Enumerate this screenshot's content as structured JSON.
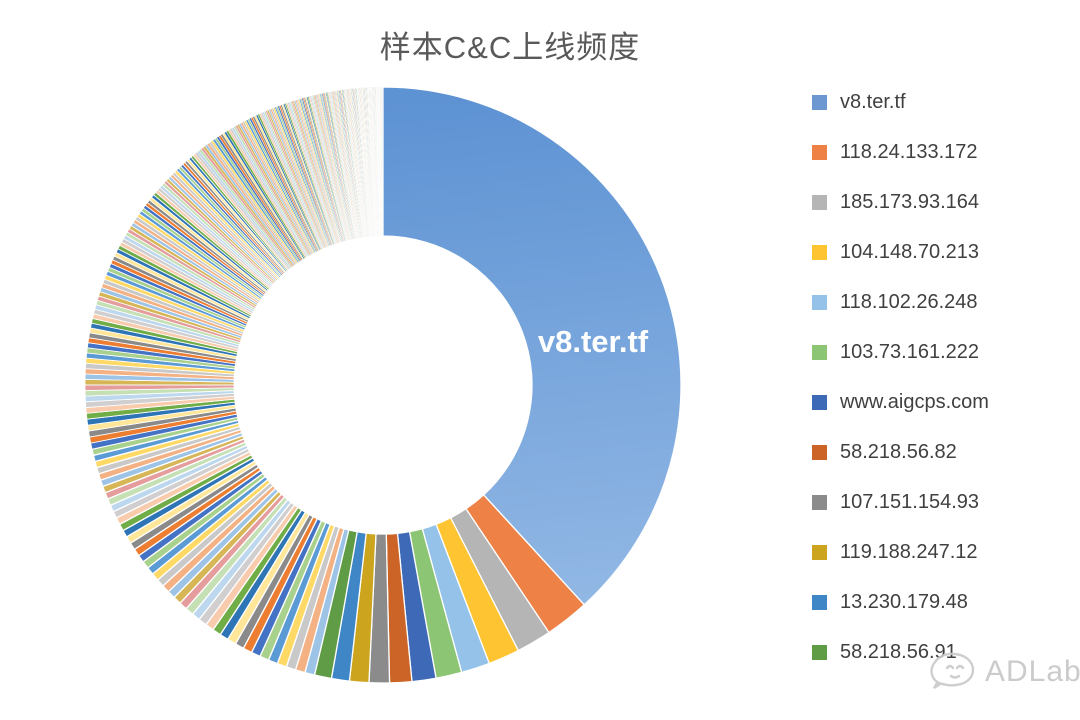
{
  "title": "样本C&C上线频度",
  "chart_data": {
    "type": "doughnut",
    "title": "样本C&C上线频度",
    "unit": "percent-of-total (estimated from arc angles, no numeric labels shown)",
    "hole_ratio": 0.5,
    "legend_position": "right",
    "grid": false,
    "callout_label": "v8.ter.tf",
    "series": [
      {
        "label": "v8.ter.tf",
        "value": 38.2,
        "color": "#6D97D0"
      },
      {
        "label": "118.24.133.172",
        "value": 2.4,
        "color": "#ED8146"
      },
      {
        "label": "185.173.93.164",
        "value": 1.9,
        "color": "#B5B5B5"
      },
      {
        "label": "104.148.70.213",
        "value": 1.7,
        "color": "#FFC431"
      },
      {
        "label": "118.102.26.248",
        "value": 1.55,
        "color": "#94C2E8"
      },
      {
        "label": "103.73.161.222",
        "value": 1.4,
        "color": "#8CC573"
      },
      {
        "label": "www.aigcps.com",
        "value": 1.3,
        "color": "#3D69B6"
      },
      {
        "label": "58.218.56.82",
        "value": 1.2,
        "color": "#CB6426"
      },
      {
        "label": "107.151.154.93",
        "value": 1.1,
        "color": "#8B8B8B"
      },
      {
        "label": "119.188.247.12",
        "value": 1.05,
        "color": "#CCA41E"
      },
      {
        "label": "13.230.179.48",
        "value": 0.97,
        "color": "#3E86C6"
      },
      {
        "label": "58.218.56.91",
        "value": 0.92,
        "color": "#5F9C45"
      }
    ],
    "big_slice_gradient": [
      "#5D92D3",
      "#96BBE6"
    ],
    "unlabeled_tail": {
      "note": "hundreds of additional unlabeled C&C endpoints with steadily decreasing share; slices thin to hairlines and fade toward white approaching 12 o'clock",
      "count": 300,
      "decay_ratio": 0.989,
      "total_value": 46.31,
      "palette": [
        "#9DC3E6",
        "#F4B183",
        "#C9C9C9",
        "#FFD966",
        "#5B9BD5",
        "#A9D18E",
        "#4472C4",
        "#ED7D31",
        "#8A8A8A",
        "#FFE699",
        "#2E75B6",
        "#70AD47",
        "#F8CBAD",
        "#D0CECE",
        "#BDD7EE",
        "#C5E0B4",
        "#E49C9C",
        "#D6B656"
      ]
    }
  },
  "watermark": {
    "text": "ADLab",
    "icon": "adlab-bubble-logo"
  }
}
